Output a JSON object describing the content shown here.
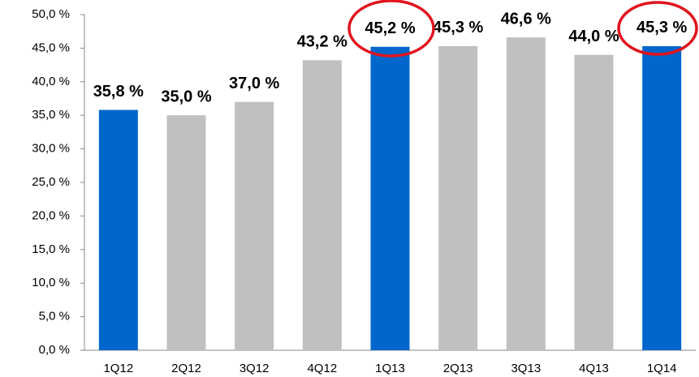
{
  "chart_data": {
    "type": "bar",
    "categories": [
      "1Q12",
      "2Q12",
      "3Q12",
      "4Q12",
      "1Q13",
      "2Q13",
      "3Q13",
      "4Q13",
      "1Q14"
    ],
    "values": [
      35.8,
      35.0,
      37.0,
      43.2,
      45.2,
      45.3,
      46.6,
      44.0,
      45.3
    ],
    "value_labels": [
      "35,8 %",
      "35,0 %",
      "37,0 %",
      "43,2 %",
      "45,2 %",
      "45,3 %",
      "46,6 %",
      "44,0 %",
      "45,3 %"
    ],
    "colors": [
      "#0066cc",
      "#c0c0c0",
      "#c0c0c0",
      "#c0c0c0",
      "#0066cc",
      "#c0c0c0",
      "#c0c0c0",
      "#c0c0c0",
      "#0066cc"
    ],
    "ylim": [
      0,
      50
    ],
    "yticks": [
      {
        "value": 0,
        "label": "0,0 %"
      },
      {
        "value": 5,
        "label": "5,0 %"
      },
      {
        "value": 10,
        "label": "10,0 %"
      },
      {
        "value": 15,
        "label": "15,0 %"
      },
      {
        "value": 20,
        "label": "20,0 %"
      },
      {
        "value": 25,
        "label": "25,0 %"
      },
      {
        "value": 30,
        "label": "30,0 %"
      },
      {
        "value": 35,
        "label": "35,0 %"
      },
      {
        "value": 40,
        "label": "40,0 %"
      },
      {
        "value": 45,
        "label": "45,0 %"
      },
      {
        "value": 50,
        "label": "50,0 %"
      }
    ],
    "grid": false
  }
}
